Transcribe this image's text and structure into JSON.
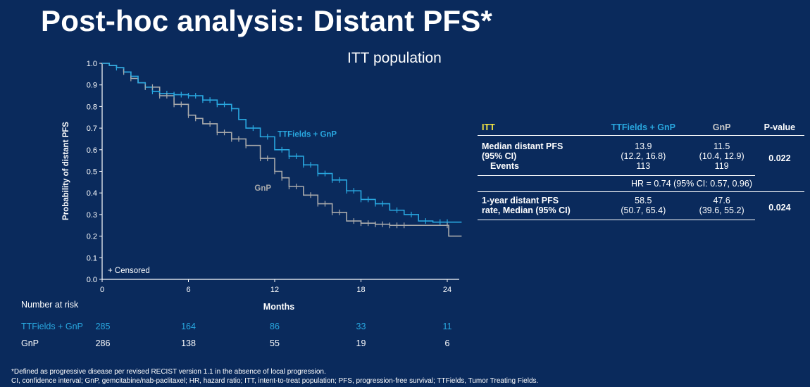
{
  "title": "Post-hoc analysis: Distant PFS*",
  "subtitle": "ITT population",
  "chart_data": {
    "type": "line",
    "subtype": "kaplan-meier",
    "xlabel": "Months",
    "ylabel": "Probability of distant PFS",
    "xlim": [
      0,
      25
    ],
    "ylim": [
      0,
      1.0
    ],
    "xticks": [
      0,
      6,
      12,
      18,
      24
    ],
    "yticks": [
      "0.0",
      "0.1",
      "0.2",
      "0.3",
      "0.4",
      "0.5",
      "0.6",
      "0.7",
      "0.8",
      "0.9",
      "1.0"
    ],
    "censored_note": "+ Censored",
    "series": [
      {
        "name": "TTFields + GnP",
        "color": "#29a8e0",
        "x": [
          0,
          0.5,
          1,
          1.5,
          2,
          2.5,
          3,
          3.5,
          4,
          5,
          6,
          7,
          8,
          9,
          9.5,
          10,
          11,
          12,
          13,
          14,
          15,
          16,
          17,
          18,
          19,
          20,
          21,
          22,
          23,
          24,
          25
        ],
        "y": [
          1.0,
          0.99,
          0.98,
          0.96,
          0.94,
          0.91,
          0.89,
          0.87,
          0.86,
          0.855,
          0.85,
          0.83,
          0.81,
          0.79,
          0.74,
          0.7,
          0.66,
          0.6,
          0.57,
          0.53,
          0.49,
          0.46,
          0.41,
          0.37,
          0.35,
          0.32,
          0.3,
          0.27,
          0.265,
          0.265,
          0.265
        ],
        "censor_x": [
          1,
          1.5,
          2,
          3,
          3.5,
          4,
          4.5,
          5,
          5.5,
          6,
          6.5,
          7,
          7.5,
          8,
          8.5,
          9,
          10.5,
          11.5,
          12.5,
          13,
          13.5,
          14,
          14.5,
          15,
          15.5,
          16,
          16.5,
          17,
          17.5,
          18,
          18.5,
          19,
          19.5,
          20.5,
          21.5,
          22.5,
          23.5,
          24
        ]
      },
      {
        "name": "GnP",
        "color": "#a9aaab",
        "x": [
          0,
          0.5,
          1,
          1.5,
          2,
          2.5,
          3,
          4,
          5,
          6,
          6.5,
          7,
          8,
          9,
          10,
          11,
          12,
          12.5,
          13,
          14,
          15,
          16,
          17,
          18,
          19,
          20,
          21,
          22,
          23,
          24,
          24.1,
          25
        ],
        "y": [
          1.0,
          0.99,
          0.98,
          0.96,
          0.93,
          0.91,
          0.89,
          0.85,
          0.81,
          0.76,
          0.745,
          0.72,
          0.68,
          0.65,
          0.62,
          0.56,
          0.5,
          0.47,
          0.43,
          0.39,
          0.35,
          0.31,
          0.27,
          0.26,
          0.255,
          0.25,
          0.25,
          0.25,
          0.25,
          0.25,
          0.2,
          0.2
        ],
        "censor_x": [
          1.5,
          2,
          3,
          3.5,
          4,
          4.5,
          5,
          5.5,
          6,
          6.5,
          7.5,
          8,
          8.5,
          9,
          9.5,
          10,
          11,
          11.5,
          12,
          12.5,
          13,
          13.5,
          14.5,
          15,
          15.5,
          16,
          16.5,
          17.5,
          18,
          18.5,
          19,
          19.5,
          20,
          20.5,
          21,
          24
        ]
      }
    ],
    "annotations": [
      {
        "text": "TTFields + GnP",
        "x": 12.2,
        "y": 0.66
      },
      {
        "text": "GnP",
        "x": 10.6,
        "y": 0.41
      }
    ]
  },
  "risk_table": {
    "header": "Number at risk",
    "months_axis": [
      0,
      6,
      12,
      18,
      24
    ],
    "rows": [
      {
        "label": "TTFields + GnP",
        "values": [
          "285",
          "164",
          "86",
          "33",
          "11"
        ]
      },
      {
        "label": "GnP",
        "values": [
          "286",
          "138",
          "55",
          "19",
          "6"
        ]
      }
    ]
  },
  "stats_table": {
    "headers": [
      "ITT",
      "TTFields + GnP",
      "GnP",
      "P-value"
    ],
    "median_label_1": "Median distant PFS",
    "median_label_2": "(95% CI)",
    "events_label": "Events",
    "ttf_median": "13.9",
    "ttf_ci": "(12.2, 16.8)",
    "ttf_events": "113",
    "gnp_median": "11.5",
    "gnp_ci": "(10.4, 12.9)",
    "gnp_events": "119",
    "p1": "0.022",
    "hr": "HR = 0.74 (95% CI: 0.57, 0.96)",
    "oneyear_label_1": "1-year distant PFS",
    "oneyear_label_2": "rate, Median (95% CI)",
    "ttf_1yr": "58.5",
    "ttf_1yr_ci": "(50.7, 65.4)",
    "gnp_1yr": "47.6",
    "gnp_1yr_ci": "(39.6, 55.2)",
    "p2": "0.024"
  },
  "footnotes": [
    "*Defined as progressive disease per revised RECIST version 1.1 in the absence of local progression.",
    "CI, confidence interval; GnP, gemcitabine/nab-paclitaxel; HR, hazard ratio; ITT, intent-to-treat population; PFS, progression-free survival; TTFields, Tumor Treating Fields."
  ]
}
